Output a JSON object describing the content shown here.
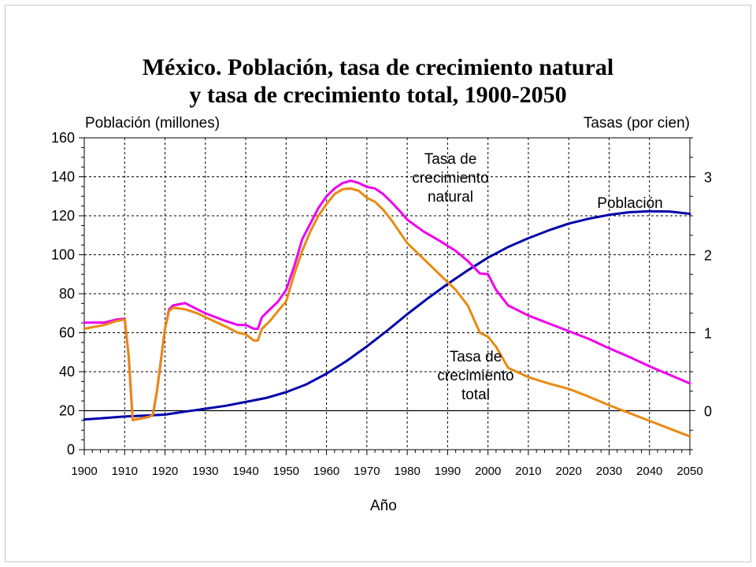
{
  "chart_data": {
    "type": "line",
    "title_line1": "México. Población, tasa de crecimiento natural",
    "title_line2": "y tasa de crecimiento total, 1900-2050",
    "xlabel": "Año",
    "ylabel_left": "Población (millones)",
    "ylabel_right": "Tasas (por cien)",
    "xlim": [
      1900,
      2050
    ],
    "ylim_left": [
      0,
      160
    ],
    "ylim_right": [
      -0.5,
      3.5
    ],
    "x_ticks": [
      "1900",
      "1910",
      "1920",
      "1930",
      "1940",
      "1950",
      "1960",
      "1970",
      "1980",
      "1990",
      "2000",
      "2010",
      "2020",
      "2030",
      "2040",
      "2050"
    ],
    "y_left_ticks": [
      "0",
      "20",
      "40",
      "60",
      "80",
      "100",
      "120",
      "140",
      "160"
    ],
    "y_right_ticks": [
      "0",
      "1",
      "2",
      "3"
    ],
    "grid": true,
    "colors": {
      "poblacion": "#0000aa",
      "natural": "#ee00ee",
      "total": "#e88a10",
      "zero_line": "#000000"
    },
    "annotations": {
      "natural_label": [
        "Tasa de",
        "crecimiento",
        "natural"
      ],
      "total_label": [
        "Tasa de",
        "crecimiento",
        "total"
      ],
      "poblacion_label": "Población"
    },
    "series": [
      {
        "name": "Población",
        "axis": "left",
        "x": [
          1900,
          1905,
          1910,
          1915,
          1920,
          1925,
          1930,
          1935,
          1940,
          1945,
          1950,
          1955,
          1960,
          1965,
          1970,
          1975,
          1980,
          1985,
          1990,
          1995,
          2000,
          2005,
          2010,
          2015,
          2020,
          2025,
          2030,
          2035,
          2040,
          2045,
          2050
        ],
        "y": [
          15.5,
          16.2,
          17,
          17.5,
          18,
          19.5,
          21,
          22.5,
          24.5,
          26.5,
          29.5,
          33.5,
          39,
          45.5,
          53,
          61,
          69.5,
          77.5,
          85,
          92,
          98.5,
          104,
          108.5,
          112.5,
          116,
          118.5,
          120.5,
          121.8,
          122.3,
          122.2,
          121
        ]
      },
      {
        "name": "Tasa de crecimiento natural",
        "axis": "right",
        "x": [
          1900,
          1905,
          1908,
          1910,
          1911,
          1912,
          1914,
          1916,
          1917,
          1918,
          1920,
          1921,
          1922,
          1925,
          1928,
          1930,
          1935,
          1938,
          1940,
          1942,
          1943,
          1944,
          1946,
          1948,
          1950,
          1952,
          1954,
          1956,
          1958,
          1960,
          1962,
          1964,
          1966,
          1968,
          1970,
          1972,
          1974,
          1976,
          1978,
          1980,
          1984,
          1988,
          1992,
          1995,
          1998,
          2000,
          2002,
          2005,
          2010,
          2015,
          2020,
          2025,
          2030,
          2035,
          2040,
          2045,
          2050
        ],
        "y": [
          1.13,
          1.13,
          1.17,
          1.18,
          0.7,
          -0.12,
          -0.1,
          -0.08,
          -0.05,
          0.25,
          1.05,
          1.3,
          1.35,
          1.38,
          1.3,
          1.25,
          1.15,
          1.1,
          1.1,
          1.05,
          1.05,
          1.2,
          1.3,
          1.4,
          1.55,
          1.85,
          2.2,
          2.4,
          2.6,
          2.75,
          2.85,
          2.92,
          2.95,
          2.92,
          2.87,
          2.85,
          2.78,
          2.68,
          2.57,
          2.45,
          2.3,
          2.18,
          2.05,
          1.92,
          1.76,
          1.75,
          1.55,
          1.35,
          1.22,
          1.12,
          1.02,
          0.92,
          0.8,
          0.69,
          0.57,
          0.46,
          0.35
        ]
      },
      {
        "name": "Tasa de crecimiento total",
        "axis": "right",
        "x": [
          1900,
          1905,
          1908,
          1910,
          1911,
          1912,
          1914,
          1916,
          1917,
          1918,
          1920,
          1921,
          1922,
          1925,
          1928,
          1930,
          1935,
          1938,
          1940,
          1942,
          1943,
          1944,
          1946,
          1948,
          1950,
          1952,
          1954,
          1956,
          1958,
          1960,
          1962,
          1964,
          1966,
          1968,
          1970,
          1972,
          1974,
          1976,
          1978,
          1980,
          1984,
          1988,
          1992,
          1995,
          1998,
          2000,
          2002,
          2005,
          2010,
          2015,
          2020,
          2025,
          2030,
          2035,
          2040,
          2045,
          2050
        ],
        "y": [
          1.05,
          1.1,
          1.15,
          1.17,
          0.7,
          -0.12,
          -0.1,
          -0.08,
          -0.05,
          0.25,
          1.05,
          1.28,
          1.32,
          1.3,
          1.25,
          1.2,
          1.08,
          1.0,
          0.98,
          0.9,
          0.9,
          1.05,
          1.15,
          1.28,
          1.4,
          1.75,
          2.05,
          2.3,
          2.5,
          2.65,
          2.78,
          2.84,
          2.85,
          2.82,
          2.73,
          2.68,
          2.58,
          2.45,
          2.3,
          2.15,
          1.95,
          1.75,
          1.55,
          1.35,
          1.0,
          0.95,
          0.82,
          0.55,
          0.43,
          0.35,
          0.28,
          0.18,
          0.07,
          -0.03,
          -0.13,
          -0.23,
          -0.33
        ]
      }
    ]
  }
}
